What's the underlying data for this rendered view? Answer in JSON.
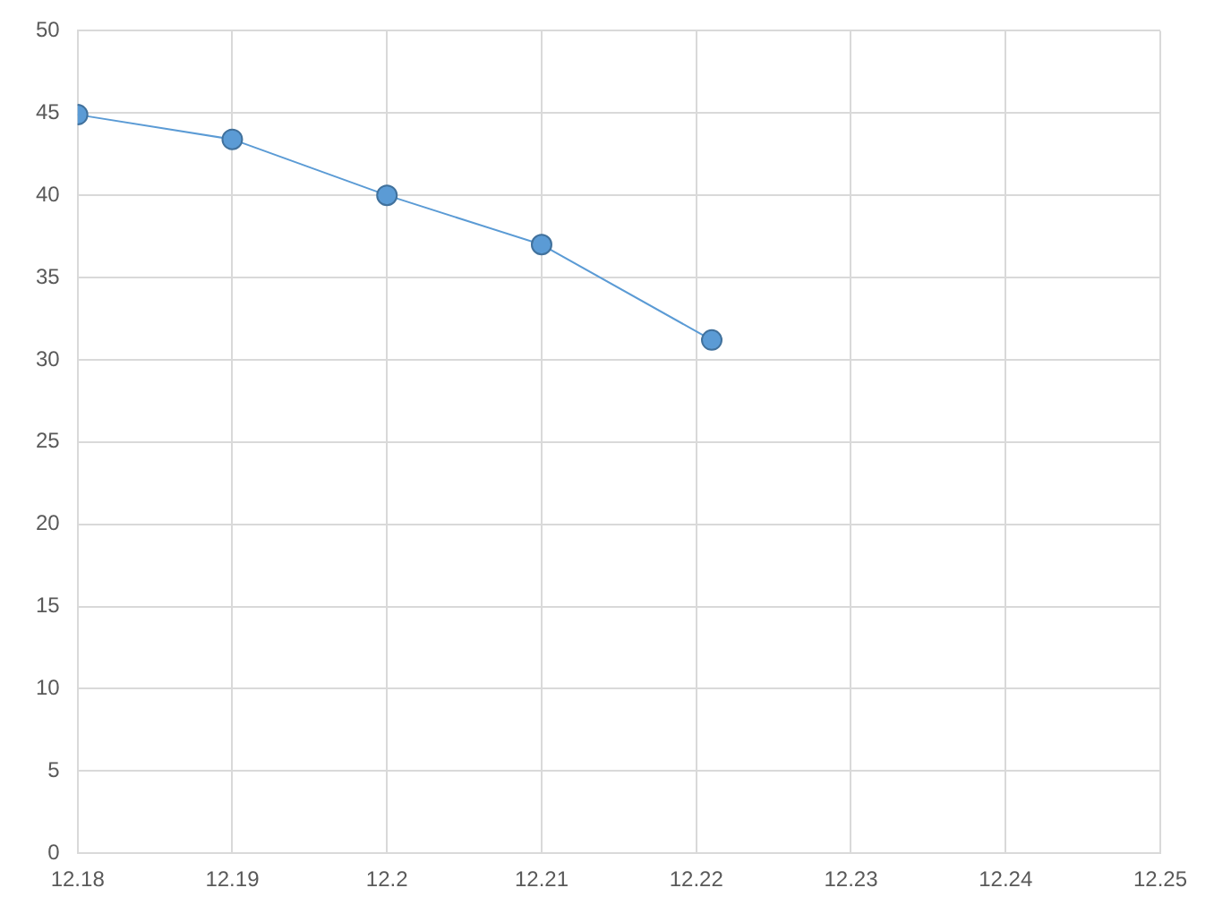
{
  "chart_data": {
    "type": "line",
    "x": [
      12.18,
      12.19,
      12.2,
      12.21,
      12.221
    ],
    "series": [
      {
        "color": "#5b9bd5",
        "values": [
          44.9,
          43.4,
          40,
          37,
          31.2
        ]
      }
    ],
    "xlim": [
      12.18,
      12.25
    ],
    "xticks": [
      12.18,
      12.19,
      12.2,
      12.21,
      12.22,
      12.23,
      12.24,
      12.25
    ],
    "ylim": [
      0,
      50
    ],
    "yticks": [
      0,
      5,
      10,
      15,
      20,
      25,
      30,
      35,
      40,
      45,
      50
    ],
    "grid": true,
    "marker": "circle",
    "line_style": "solid",
    "legend": false
  }
}
